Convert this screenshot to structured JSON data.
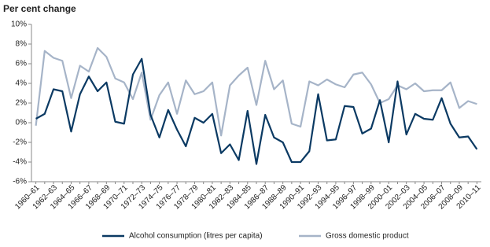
{
  "chart_data": {
    "type": "line",
    "title": "Per cent change",
    "categories": [
      "1960–61",
      null,
      "1962–63",
      null,
      "1964–65",
      null,
      "1966–67",
      null,
      "1968–69",
      null,
      "1970–71",
      null,
      "1972–73",
      null,
      "1974–75",
      null,
      "1976–77",
      null,
      "1978–79",
      null,
      "1980–81",
      null,
      "1982–83",
      null,
      "1984–85",
      null,
      "1986–87",
      null,
      "1988–89",
      null,
      "1990–91",
      null,
      "1992–93",
      null,
      "1994–95",
      null,
      "1996–97",
      null,
      "1998–99",
      null,
      "2000–01",
      null,
      "2002–03",
      null,
      "2004–05",
      null,
      "2006–07",
      null,
      "2008–09",
      null,
      "2010–11"
    ],
    "series": [
      {
        "name": "Alcohol consumption (litres per capita)",
        "color": "#0b3a63",
        "values": [
          0.4,
          0.9,
          3.4,
          3.2,
          -0.9,
          2.9,
          4.7,
          3.2,
          4.1,
          0.1,
          -0.1,
          4.9,
          6.5,
          0.8,
          -1.5,
          1.3,
          -0.7,
          -2.4,
          0.5,
          0.0,
          0.9,
          -3.1,
          -2.2,
          -3.8,
          1.2,
          -4.2,
          0.8,
          -1.5,
          -2.0,
          -4.0,
          -4.0,
          -2.9,
          2.9,
          -1.8,
          -1.7,
          1.7,
          1.6,
          -1.1,
          -0.6,
          2.3,
          -2.0,
          4.2,
          -1.2,
          0.9,
          0.4,
          0.3,
          2.5,
          -0.1,
          -1.5,
          -1.4,
          -2.7
        ]
      },
      {
        "name": "Gross domestic product",
        "color": "#a6b4c8",
        "values": [
          -0.3,
          7.3,
          6.6,
          6.3,
          2.5,
          5.8,
          5.2,
          7.6,
          6.7,
          4.5,
          4.1,
          2.4,
          5.1,
          0.3,
          2.8,
          4.1,
          0.9,
          4.3,
          2.9,
          3.2,
          4.1,
          -1.3,
          3.8,
          4.8,
          5.6,
          1.8,
          6.3,
          3.4,
          4.3,
          -0.1,
          -0.4,
          4.2,
          3.8,
          4.4,
          3.9,
          3.6,
          4.9,
          5.1,
          3.9,
          2.0,
          2.4,
          3.8,
          3.4,
          4.0,
          3.2,
          3.3,
          3.3,
          4.1,
          1.5,
          2.2,
          1.9
        ]
      }
    ],
    "ylim": [
      -6,
      10
    ],
    "yticks": [
      {
        "value": -6,
        "label": "-6%"
      },
      {
        "value": -4,
        "label": "-4%"
      },
      {
        "value": -2,
        "label": "-2%"
      },
      {
        "value": 0,
        "label": "0%"
      },
      {
        "value": 2,
        "label": "2%"
      },
      {
        "value": 4,
        "label": "4%"
      },
      {
        "value": 6,
        "label": "6%"
      },
      {
        "value": 8,
        "label": "8%"
      },
      {
        "value": 10,
        "label": "10%"
      }
    ],
    "legend": "bottom"
  }
}
